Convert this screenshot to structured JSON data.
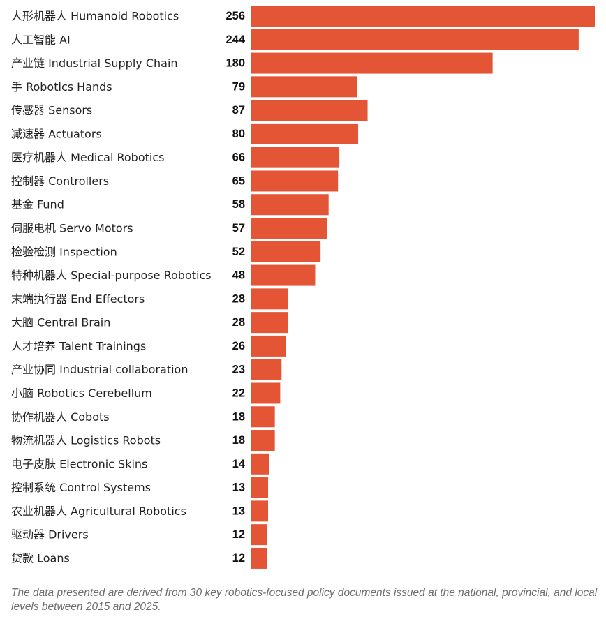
{
  "chart_data": {
    "type": "bar",
    "orientation": "horizontal",
    "bar_color": "#e45536",
    "categories": [
      "人形机器人 Humanoid Robotics",
      "人工智能 AI",
      "产业链 Industrial Supply Chain",
      "手 Robotics Hands",
      "传感器 Sensors",
      "减速器 Actuators",
      "医疗机器人 Medical Robotics",
      "控制器 Controllers",
      "基金 Fund",
      "伺服电机 Servo Motors",
      "检验检测 Inspection",
      "特种机器人 Special-purpose Robotics",
      "末端执行器 End Effectors",
      "大脑 Central Brain",
      "人才培养 Talent Trainings",
      "产业协同 Industrial collaboration",
      "小脑 Robotics Cerebellum",
      "协作机器人 Cobots",
      "物流机器人 Logistics Robots",
      "电子皮肤 Electronic Skins",
      "控制系统 Control Systems",
      "农业机器人 Agricultural Robotics",
      "驱动器 Drivers",
      "贷款 Loans"
    ],
    "values": [
      256,
      244,
      180,
      79,
      87,
      80,
      66,
      65,
      58,
      57,
      52,
      48,
      28,
      28,
      26,
      23,
      22,
      18,
      18,
      14,
      13,
      13,
      12,
      12
    ],
    "xlim": [
      0,
      256
    ],
    "grid": false,
    "legend": "none"
  },
  "footnote": "The data presented are derived from 30 key robotics-focused policy documents issued at the national, provincial, and local levels between 2015 and 2025."
}
